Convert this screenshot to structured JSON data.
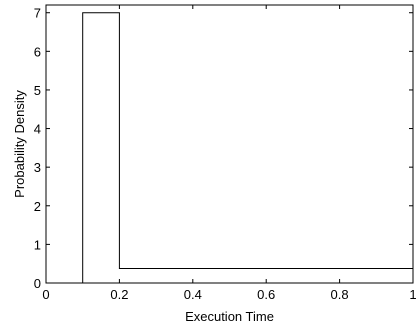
{
  "chart_data": {
    "type": "line",
    "title": "",
    "xlabel": "Execution Time",
    "ylabel": "Probability Density",
    "xlim": [
      0,
      1
    ],
    "ylim": [
      0,
      7.2
    ],
    "xticks": [
      0,
      0.2,
      0.4,
      0.6,
      0.8,
      1
    ],
    "xtick_labels": [
      "0",
      "0.2",
      "0.4",
      "0.6",
      "0.8",
      "1"
    ],
    "yticks": [
      0,
      1,
      2,
      3,
      4,
      5,
      6,
      7
    ],
    "ytick_labels": [
      "0",
      "1",
      "2",
      "3",
      "4",
      "5",
      "6",
      "7"
    ],
    "grid": false,
    "series": [
      {
        "x": [
          0.1,
          0.1,
          0.2,
          0.2,
          1.0,
          1.0
        ],
        "y": [
          0,
          7,
          7,
          0.375,
          0.375,
          0
        ],
        "color": "#000000"
      }
    ]
  }
}
